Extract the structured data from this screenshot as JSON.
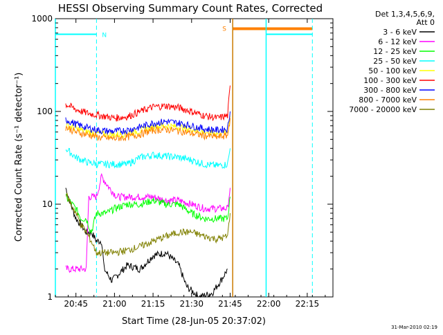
{
  "chart_data": {
    "type": "line",
    "title": "HESSI Observing Summary Count Rates, Corrected",
    "xlabel": "Start Time (28-Jun-05 20:37:02)",
    "ylabel": "Corrected Count Rate (s⁻¹ detector⁻¹)",
    "ylog": true,
    "ylim": [
      1,
      1000
    ],
    "xlim_minutes": [
      -8,
      100
    ],
    "x_ticks": [
      "20:45",
      "21:00",
      "21:15",
      "21:30",
      "21:45",
      "22:00",
      "22:15"
    ],
    "x_tick_minutes": [
      0,
      15,
      30,
      45,
      60,
      75,
      90
    ],
    "y_ticks": [
      "1",
      "10",
      "100",
      "1000"
    ],
    "y_tick_values": [
      1,
      10,
      100,
      1000
    ],
    "legend_title": [
      "Det 1,3,4,5,6,9,",
      "Att 0"
    ],
    "legend_placement": "right",
    "footer_date": "31-Mar-2010 02:19",
    "annotations": {
      "night_label": "N",
      "saa_label": "S"
    },
    "flags": {
      "night_bar": {
        "y": 680,
        "segments": [
          [
            -8,
            8
          ],
          [
            74,
            92
          ]
        ],
        "color": "#00ffff"
      },
      "saa_bar": {
        "y": 780,
        "segments": [
          [
            61,
            92
          ]
        ],
        "color": "#ff8000"
      },
      "dashed_lines": [
        {
          "x": 8,
          "color": "#00ffff"
        },
        {
          "x": 92,
          "color": "#00ffff"
        }
      ],
      "solid_lines": [
        {
          "x": -8,
          "color": "#00ffff"
        },
        {
          "x": 74,
          "color": "#00ffff"
        },
        {
          "x": 61,
          "color": "#cc7a00"
        }
      ]
    },
    "series": [
      {
        "name": "3 - 6 keV",
        "color": "#000000",
        "points": [
          [
            -4,
            15
          ],
          [
            -2,
            10
          ],
          [
            0,
            7
          ],
          [
            2,
            6
          ],
          [
            4,
            5
          ],
          [
            6,
            5
          ],
          [
            8,
            4
          ],
          [
            10,
            4
          ],
          [
            11,
            2
          ],
          [
            14,
            1.5
          ],
          [
            20,
            2.2
          ],
          [
            25,
            2
          ],
          [
            30,
            2.8
          ],
          [
            35,
            3
          ],
          [
            40,
            2.2
          ],
          [
            43,
            1.3
          ],
          [
            48,
            1
          ],
          [
            53,
            1.1
          ],
          [
            57,
            1.6
          ],
          [
            59,
            2
          ]
        ]
      },
      {
        "name": "6 - 12 keV",
        "color": "#ff00ff",
        "points": [
          [
            -4,
            2
          ],
          [
            2,
            2
          ],
          [
            4,
            2
          ],
          [
            5,
            12
          ],
          [
            8,
            12
          ],
          [
            10,
            20
          ],
          [
            11,
            18
          ],
          [
            13,
            15
          ],
          [
            16,
            12
          ],
          [
            20,
            12
          ],
          [
            25,
            12
          ],
          [
            30,
            12
          ],
          [
            35,
            11
          ],
          [
            40,
            11
          ],
          [
            45,
            10
          ],
          [
            50,
            9
          ],
          [
            55,
            9
          ],
          [
            59,
            9
          ],
          [
            60,
            15
          ]
        ]
      },
      {
        "name": "12 - 25 keV",
        "color": "#00ff00",
        "points": [
          [
            -4,
            12
          ],
          [
            0,
            9
          ],
          [
            2,
            7
          ],
          [
            4,
            7
          ],
          [
            6,
            5
          ],
          [
            8,
            8
          ],
          [
            12,
            8
          ],
          [
            15,
            9
          ],
          [
            20,
            10
          ],
          [
            25,
            10
          ],
          [
            30,
            11
          ],
          [
            35,
            10
          ],
          [
            40,
            10
          ],
          [
            45,
            8
          ],
          [
            50,
            7
          ],
          [
            55,
            7
          ],
          [
            59,
            7
          ],
          [
            60,
            12
          ]
        ]
      },
      {
        "name": "25 - 50 keV",
        "color": "#00ffff",
        "points": [
          [
            -4,
            40
          ],
          [
            0,
            32
          ],
          [
            5,
            28
          ],
          [
            10,
            27
          ],
          [
            15,
            27
          ],
          [
            20,
            27
          ],
          [
            25,
            32
          ],
          [
            30,
            34
          ],
          [
            35,
            33
          ],
          [
            40,
            32
          ],
          [
            45,
            30
          ],
          [
            50,
            27
          ],
          [
            55,
            26
          ],
          [
            59,
            27
          ],
          [
            60,
            40
          ]
        ]
      },
      {
        "name": "50 - 100 keV",
        "color": "#ffff00",
        "points": [
          [
            -4,
            72
          ],
          [
            0,
            65
          ],
          [
            5,
            60
          ],
          [
            10,
            57
          ],
          [
            15,
            56
          ],
          [
            20,
            58
          ],
          [
            25,
            62
          ],
          [
            30,
            68
          ],
          [
            35,
            70
          ],
          [
            40,
            68
          ],
          [
            45,
            64
          ],
          [
            50,
            60
          ],
          [
            55,
            58
          ],
          [
            59,
            60
          ],
          [
            60,
            90
          ]
        ]
      },
      {
        "name": "100 - 300 keV",
        "color": "#ff0000",
        "points": [
          [
            -4,
            120
          ],
          [
            0,
            105
          ],
          [
            5,
            95
          ],
          [
            10,
            90
          ],
          [
            15,
            85
          ],
          [
            20,
            88
          ],
          [
            25,
            100
          ],
          [
            30,
            112
          ],
          [
            35,
            115
          ],
          [
            40,
            110
          ],
          [
            45,
            100
          ],
          [
            50,
            90
          ],
          [
            55,
            85
          ],
          [
            59,
            90
          ],
          [
            60,
            190
          ]
        ]
      },
      {
        "name": "300 - 800 keV",
        "color": "#0000ff",
        "points": [
          [
            -4,
            82
          ],
          [
            0,
            73
          ],
          [
            5,
            66
          ],
          [
            10,
            62
          ],
          [
            15,
            61
          ],
          [
            20,
            63
          ],
          [
            25,
            68
          ],
          [
            30,
            75
          ],
          [
            35,
            78
          ],
          [
            40,
            75
          ],
          [
            45,
            70
          ],
          [
            50,
            65
          ],
          [
            55,
            63
          ],
          [
            59,
            65
          ],
          [
            60,
            100
          ]
        ]
      },
      {
        "name": "800 - 7000 keV",
        "color": "#ff8000",
        "points": [
          [
            -4,
            68
          ],
          [
            0,
            60
          ],
          [
            5,
            56
          ],
          [
            10,
            52
          ],
          [
            15,
            51
          ],
          [
            20,
            53
          ],
          [
            25,
            57
          ],
          [
            30,
            63
          ],
          [
            35,
            64
          ],
          [
            40,
            62
          ],
          [
            45,
            58
          ],
          [
            50,
            55
          ],
          [
            55,
            53
          ],
          [
            59,
            55
          ],
          [
            60,
            85
          ]
        ]
      },
      {
        "name": "7000 - 20000 keV",
        "color": "#808000",
        "points": [
          [
            -4,
            13
          ],
          [
            0,
            8
          ],
          [
            2,
            6
          ],
          [
            4,
            5
          ],
          [
            6,
            4
          ],
          [
            8,
            3
          ],
          [
            10,
            3
          ],
          [
            15,
            3
          ],
          [
            20,
            3.2
          ],
          [
            25,
            3.5
          ],
          [
            30,
            4
          ],
          [
            35,
            4.5
          ],
          [
            40,
            5
          ],
          [
            45,
            5
          ],
          [
            50,
            4.5
          ],
          [
            55,
            4.2
          ],
          [
            59,
            4.5
          ],
          [
            60,
            8
          ]
        ]
      }
    ]
  }
}
